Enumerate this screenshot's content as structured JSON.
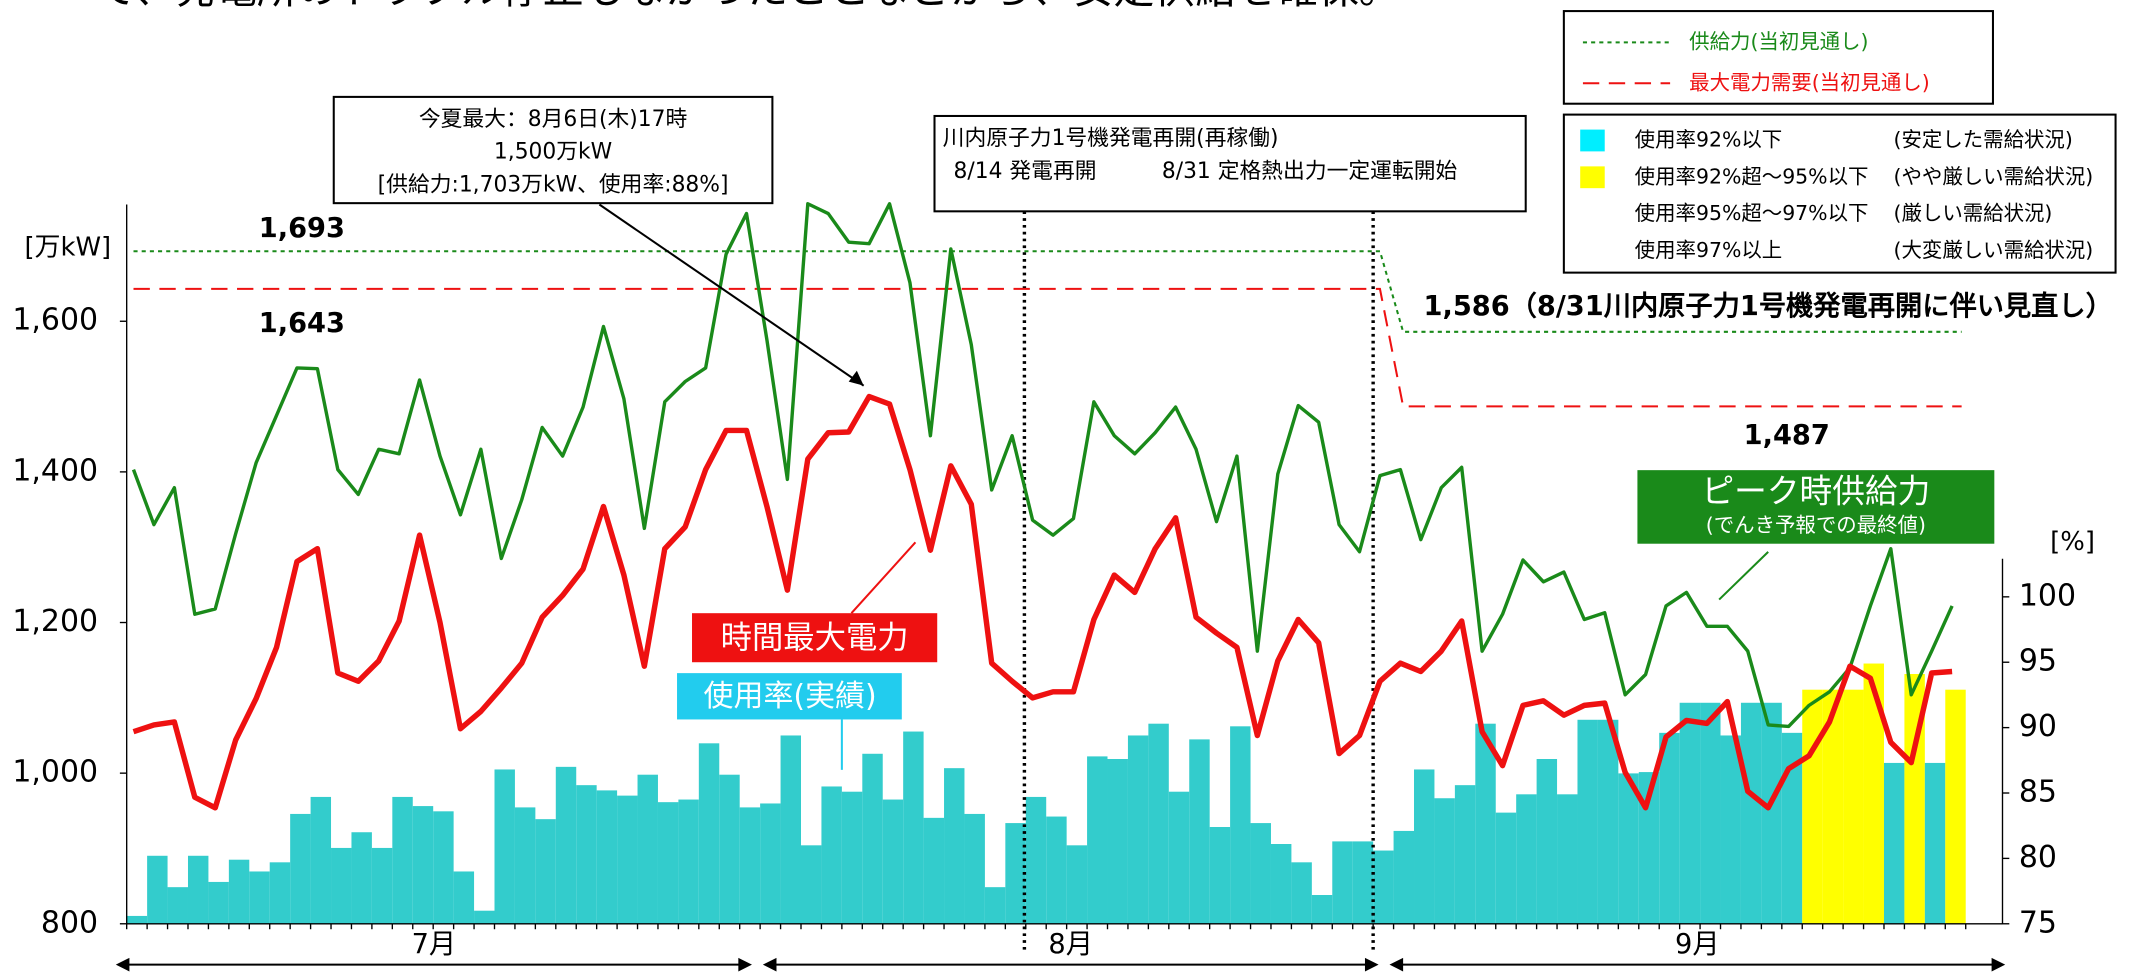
{
  "header_text": "て、発電所のトラブル停止もなかったことなどから、安定供給を確保。",
  "chart_data": {
    "type": "combo",
    "categories": [
      null,
      null,
      null,
      null,
      null,
      null,
      null,
      null,
      null,
      null,
      null,
      null,
      null,
      null,
      null,
      null,
      null,
      null,
      null,
      null,
      null,
      null,
      null,
      null,
      null,
      null,
      null,
      null,
      null,
      null,
      null,
      null,
      null,
      null,
      null,
      null,
      null,
      null,
      null,
      null,
      null,
      null,
      null,
      null,
      null,
      null,
      null,
      null,
      null,
      null,
      null,
      null,
      null,
      null,
      null,
      null,
      null,
      null,
      null,
      null,
      null,
      null,
      null,
      null,
      null,
      null,
      null,
      null,
      null,
      null,
      null,
      null,
      null,
      null,
      null,
      null,
      null,
      null,
      null,
      null,
      null,
      null,
      null,
      null,
      null,
      null,
      null,
      null,
      null,
      null
    ],
    "months": [
      "7月",
      "8月",
      "9月"
    ],
    "ylabel": "[万kW]",
    "y2label": "[%]",
    "ylim": [
      800,
      1755
    ],
    "yticks": [
      800,
      {
        "value": 1000,
        "label": "1,000"
      },
      {
        "value": 1200,
        "label": "1,200"
      },
      {
        "value": 1400,
        "label": "1,400"
      },
      {
        "value": 1600,
        "label": "1,600"
      }
    ],
    "y2lim": [
      75,
      100
    ],
    "y2ticks": [
      75,
      80,
      85,
      90,
      95,
      100
    ],
    "series": [
      {
        "name": "ピーク時供給力",
        "note": "(でんき予報での最終値)",
        "type": "line",
        "color": "#1a8a1a",
        "values": [
          1403,
          1330,
          1379,
          1211,
          1218,
          1318,
          1412,
          1475,
          1538,
          1537,
          1403,
          1370,
          1430,
          1424,
          1522,
          1421,
          1343,
          1430,
          1285,
          1363,
          1459,
          1421,
          1486,
          1593,
          1497,
          1325,
          1493,
          1520,
          1538,
          1689,
          1743,
          1575,
          1390,
          1756,
          1743,
          1705,
          1703,
          1756,
          1651,
          1448,
          1696,
          1569,
          1376,
          1448,
          1336,
          1316,
          1338,
          1493,
          1448,
          1424,
          1452,
          1486,
          1430,
          1334,
          1421,
          1162,
          1397,
          1488,
          1466,
          1330,
          1294,
          1395,
          1403,
          1310,
          1379,
          1406,
          1162,
          1211,
          1283,
          1254,
          1267,
          1204,
          1213,
          1104,
          1131,
          1222,
          1240,
          1195,
          1195,
          1162,
          1064,
          1062,
          1090,
          1108,
          1140,
          1222,
          1298,
          1104,
          1162,
          1222
        ]
      },
      {
        "name": "時間最大電力",
        "type": "line",
        "color": "#ee1111",
        "values": [
          1055,
          1064,
          1068,
          968,
          954,
          1044,
          1099,
          1167,
          1281,
          1298,
          1133,
          1122,
          1149,
          1202,
          1316,
          1200,
          1059,
          1082,
          1113,
          1146,
          1207,
          1236,
          1271,
          1354,
          1263,
          1142,
          1298,
          1327,
          1403,
          1455,
          1455,
          1354,
          1243,
          1417,
          1452,
          1453,
          1500,
          1490,
          1403,
          1296,
          1408,
          1357,
          1146,
          1122,
          1100,
          1108,
          1108,
          1204,
          1263,
          1240,
          1298,
          1339,
          1207,
          1186,
          1167,
          1050,
          1149,
          1204,
          1173,
          1026,
          1050,
          1122,
          1146,
          1135,
          1162,
          1202,
          1055,
          1010,
          1090,
          1096,
          1077,
          1090,
          1093,
          1001,
          954,
          1048,
          1070,
          1066,
          1095,
          976,
          954,
          1006,
          1023,
          1068,
          1142,
          1126,
          1041,
          1014,
          1133,
          1135
        ]
      },
      {
        "name": "使用率(実績)",
        "type": "bar",
        "axis": "y2",
        "color": "#33cccc",
        "values": [
          75.6,
          80.2,
          77.8,
          80.2,
          78.2,
          79.9,
          79,
          79.7,
          83.4,
          84.7,
          80.8,
          82,
          80.8,
          84.7,
          84,
          83.6,
          79,
          76,
          86.8,
          83.9,
          83,
          87,
          85.6,
          85.2,
          84.8,
          86.4,
          84.3,
          84.5,
          88.8,
          86.4,
          83.9,
          84.2,
          89.4,
          81,
          85.5,
          85.1,
          88,
          84.5,
          89.7,
          83.1,
          86.9,
          83.4,
          77.8,
          82.7,
          84.7,
          83.2,
          81,
          87.8,
          87.6,
          89.4,
          90.3,
          85.1,
          89.1,
          82.4,
          90.1,
          82.7,
          81.1,
          79.7,
          77.2,
          81.3,
          81.3,
          80.6,
          82.1,
          86.8,
          84.6,
          85.6,
          90.3,
          83.5,
          84.9,
          87.6,
          84.9,
          90.6,
          90.6,
          86.5,
          86.6,
          89.6,
          91.9,
          91.9,
          89.4,
          91.9,
          91.9,
          89.6,
          92.9,
          92.9,
          92.9,
          94.9,
          87.3,
          94.1,
          87.3,
          92.9
        ]
      }
    ],
    "reference_lines": [
      {
        "name": "供給力(当初見通し)",
        "color": "#1a8a1a",
        "dash": "3,3",
        "segments": [
          {
            "value": 1693,
            "label": "1,693"
          },
          {
            "value": 1586,
            "label": "1,586（8/31川内原子力1号機発電再開に伴い見直し）"
          }
        ]
      },
      {
        "name": "最大電力需要(当初見通し)",
        "color": "#ee1111",
        "dash": "12,7",
        "segments": [
          {
            "value": 1643,
            "label": "1,643"
          },
          {
            "value": 1487,
            "label": "1,487"
          }
        ]
      }
    ],
    "usage_levels": [
      {
        "label": "使用率92%以下",
        "note": "(安定した需給状況)",
        "color": "#33cccc",
        "max": 92
      },
      {
        "label": "使用率92%超～95%以下",
        "note": "(やや厳しい需給状況)",
        "color": "#ffff00",
        "max": 95
      },
      {
        "label": "使用率95%超～97%以下",
        "note": "(厳しい需給状況)",
        "color": "#ff9999",
        "max": 97
      },
      {
        "label": "使用率97%以上",
        "note": "(大変厳しい需給状況)",
        "color": "#ff0000",
        "max": null
      }
    ],
    "annotations": [
      {
        "lines": [
          "今夏最大：8月6日(木)17時",
          "1,500万kW",
          "[供給力:1,703万kW、使用率:88%]"
        ]
      },
      {
        "lines": [
          "川内原子力1号機発電再開(再稼働)",
          "8/14 発電再開　　　8/31 定格熱出力一定運転開始"
        ]
      }
    ]
  }
}
